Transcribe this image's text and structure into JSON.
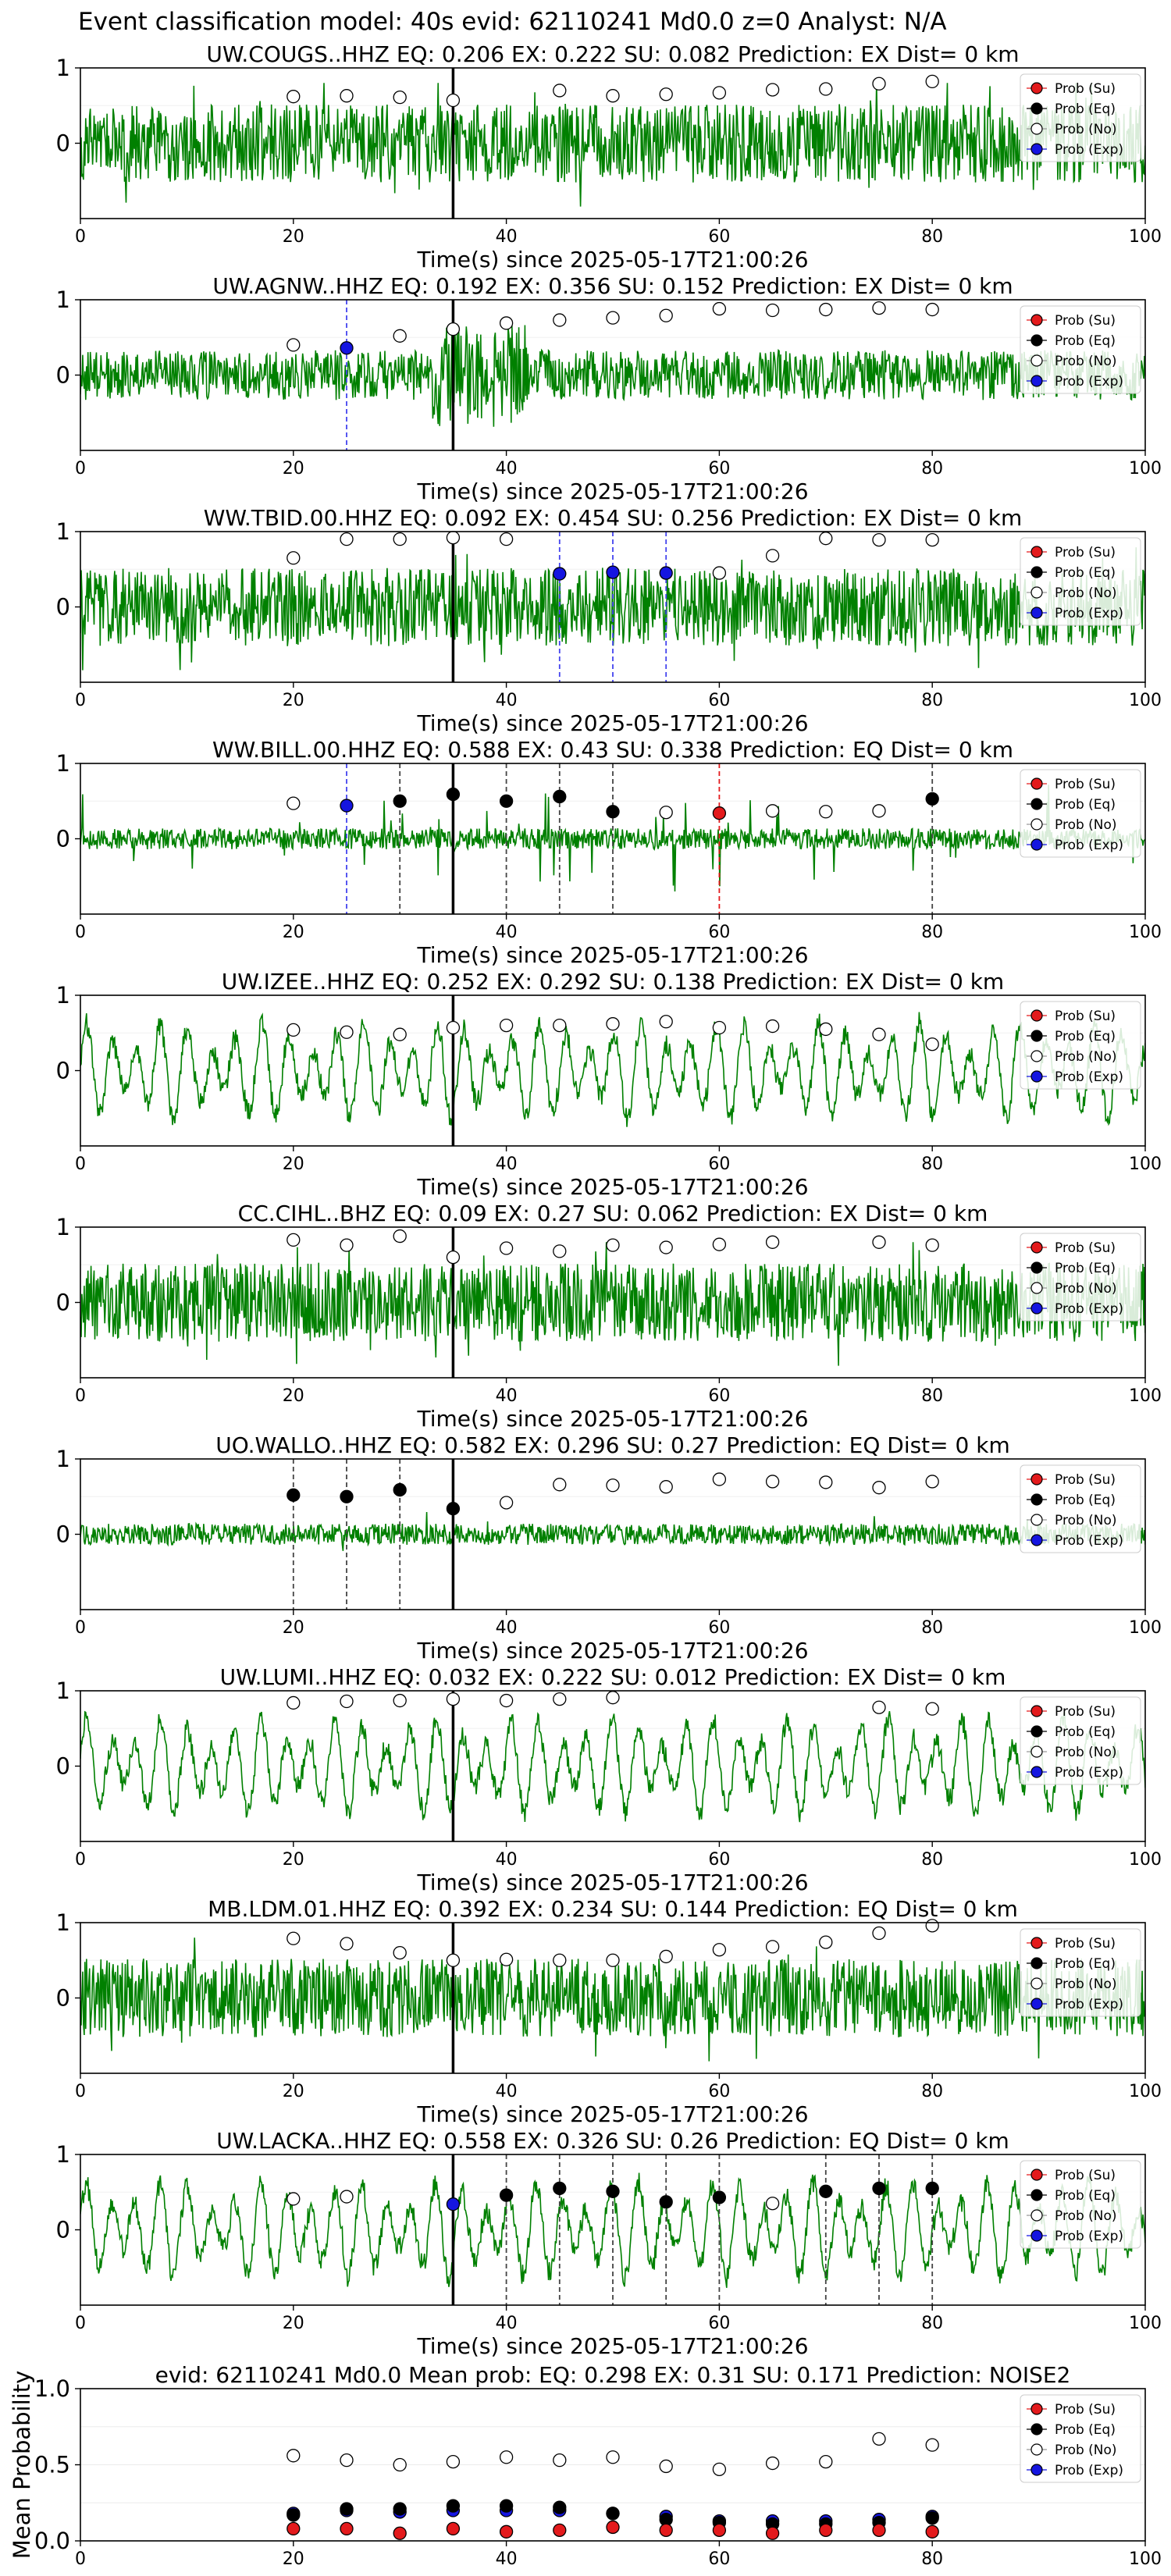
{
  "figure": {
    "suptitle": "Event classification model: 40s evid: 62110241 Md0.0 z=0 Analyst: N/A"
  },
  "legend": {
    "entries": [
      {
        "label": "Prob (Su)",
        "color": "#e31a1c"
      },
      {
        "label": "Prob (Eq)",
        "color": "#000000"
      },
      {
        "label": "Prob (No)",
        "color": "#ffffff"
      },
      {
        "label": "Prob (Exp)",
        "color": "#1515e0"
      }
    ]
  },
  "colors": {
    "waveform": "#008000",
    "su": "#e31a1c",
    "eq": "#000000",
    "no": "#ffffff",
    "exp": "#1515e0",
    "origin_line": "#000000"
  },
  "chart_data": [
    {
      "type": "line",
      "title": "UW.COUGS..HHZ   EQ: 0.206  EX: 0.222  SU: 0.082   Prediction: EX    Dist= 0 km",
      "xlabel": "Time(s) since 2025-05-17T21:00:26",
      "xlim": [
        0,
        100
      ],
      "ylim": [
        -1,
        1
      ],
      "xticks": [
        0,
        20,
        40,
        60,
        80,
        100
      ],
      "yticks": [
        0,
        1
      ],
      "origin_time": 35,
      "waveform_style": "noisy",
      "detections": [],
      "no_prob": {
        "x": [
          20,
          25,
          30,
          35,
          45,
          50,
          55,
          60,
          65,
          70,
          75,
          80
        ],
        "y": [
          0.62,
          0.63,
          0.61,
          0.57,
          0.7,
          0.63,
          0.65,
          0.67,
          0.71,
          0.72,
          0.79,
          0.82
        ]
      },
      "eq_prob": {
        "x": [],
        "y": []
      },
      "exp_prob": {
        "x": [],
        "y": []
      },
      "su_prob": {
        "x": [],
        "y": []
      }
    },
    {
      "type": "line",
      "title": "UW.AGNW..HHZ   EQ: 0.192  EX: 0.356  SU: 0.152   Prediction: EX    Dist= 0 km",
      "xlabel": "Time(s) since 2025-05-17T21:00:26",
      "xlim": [
        0,
        100
      ],
      "ylim": [
        -1,
        1
      ],
      "xticks": [
        0,
        20,
        40,
        60,
        80,
        100
      ],
      "yticks": [
        0,
        1
      ],
      "origin_time": 35,
      "waveform_style": "burst",
      "detections": [
        {
          "x": 25,
          "kind": "exp"
        }
      ],
      "no_prob": {
        "x": [
          20,
          30,
          35,
          40,
          45,
          50,
          55,
          60,
          65,
          70,
          75,
          80
        ],
        "y": [
          0.4,
          0.52,
          0.61,
          0.69,
          0.73,
          0.76,
          0.79,
          0.88,
          0.86,
          0.87,
          0.89,
          0.87
        ]
      },
      "eq_prob": {
        "x": [],
        "y": []
      },
      "exp_prob": {
        "x": [
          25
        ],
        "y": [
          0.36
        ]
      },
      "su_prob": {
        "x": [],
        "y": []
      }
    },
    {
      "type": "line",
      "title": "WW.TBID.00.HHZ   EQ: 0.092  EX: 0.454  SU: 0.256   Prediction: EX    Dist= 0 km",
      "xlabel": "Time(s) since 2025-05-17T21:00:26",
      "xlim": [
        0,
        100
      ],
      "ylim": [
        -1,
        1
      ],
      "xticks": [
        0,
        20,
        40,
        60,
        80,
        100
      ],
      "yticks": [
        0,
        1
      ],
      "origin_time": 35,
      "waveform_style": "noisy",
      "detections": [
        {
          "x": 45,
          "kind": "exp"
        },
        {
          "x": 50,
          "kind": "exp"
        },
        {
          "x": 55,
          "kind": "exp"
        }
      ],
      "no_prob": {
        "x": [
          20,
          25,
          30,
          35,
          40,
          60,
          65,
          70,
          75,
          80
        ],
        "y": [
          0.65,
          0.9,
          0.9,
          0.92,
          0.9,
          0.45,
          0.68,
          0.91,
          0.89,
          0.89
        ]
      },
      "eq_prob": {
        "x": [],
        "y": []
      },
      "exp_prob": {
        "x": [
          45,
          50,
          55
        ],
        "y": [
          0.44,
          0.46,
          0.45
        ]
      },
      "su_prob": {
        "x": [],
        "y": []
      }
    },
    {
      "type": "line",
      "title": "WW.BILL.00.HHZ   EQ: 0.588  EX: 0.43  SU: 0.338   Prediction: EQ    Dist= 0 km",
      "xlabel": "Time(s) since 2025-05-17T21:00:26",
      "xlim": [
        0,
        100
      ],
      "ylim": [
        -1,
        1
      ],
      "xticks": [
        0,
        20,
        40,
        60,
        80,
        100
      ],
      "yticks": [
        0,
        1
      ],
      "origin_time": 35,
      "waveform_style": "spiky",
      "detections": [
        {
          "x": 25,
          "kind": "exp"
        },
        {
          "x": 30,
          "kind": "eq"
        },
        {
          "x": 40,
          "kind": "eq"
        },
        {
          "x": 45,
          "kind": "eq"
        },
        {
          "x": 50,
          "kind": "eq"
        },
        {
          "x": 60,
          "kind": "su"
        },
        {
          "x": 80,
          "kind": "eq"
        }
      ],
      "no_prob": {
        "x": [
          20,
          55,
          65,
          70,
          75
        ],
        "y": [
          0.47,
          0.35,
          0.37,
          0.36,
          0.37
        ]
      },
      "eq_prob": {
        "x": [
          30,
          35,
          40,
          45,
          50,
          80
        ],
        "y": [
          0.5,
          0.59,
          0.5,
          0.56,
          0.36,
          0.53
        ]
      },
      "exp_prob": {
        "x": [
          25
        ],
        "y": [
          0.44
        ]
      },
      "su_prob": {
        "x": [
          60
        ],
        "y": [
          0.34
        ]
      }
    },
    {
      "type": "line",
      "title": "UW.IZEE..HHZ   EQ: 0.252  EX: 0.292  SU: 0.138   Prediction: EX    Dist= 0 km",
      "xlabel": "Time(s) since 2025-05-17T21:00:26",
      "xlim": [
        0,
        100
      ],
      "ylim": [
        -1,
        1
      ],
      "xticks": [
        0,
        20,
        40,
        60,
        80,
        100
      ],
      "yticks": [
        0,
        1
      ],
      "origin_time": 35,
      "waveform_style": "wavy",
      "detections": [],
      "no_prob": {
        "x": [
          20,
          25,
          30,
          35,
          40,
          45,
          50,
          55,
          60,
          65,
          70,
          75,
          80
        ],
        "y": [
          0.54,
          0.51,
          0.48,
          0.57,
          0.6,
          0.6,
          0.62,
          0.65,
          0.57,
          0.59,
          0.55,
          0.48,
          0.35
        ]
      },
      "eq_prob": {
        "x": [],
        "y": []
      },
      "exp_prob": {
        "x": [],
        "y": []
      },
      "su_prob": {
        "x": [],
        "y": []
      }
    },
    {
      "type": "line",
      "title": "CC.CIHL..BHZ   EQ: 0.09  EX: 0.27  SU: 0.062   Prediction: EX    Dist= 0 km",
      "xlabel": "Time(s) since 2025-05-17T21:00:26",
      "xlim": [
        0,
        100
      ],
      "ylim": [
        -1,
        1
      ],
      "xticks": [
        0,
        20,
        40,
        60,
        80,
        100
      ],
      "yticks": [
        0,
        1
      ],
      "origin_time": 35,
      "waveform_style": "noisy",
      "detections": [],
      "no_prob": {
        "x": [
          20,
          25,
          30,
          35,
          40,
          45,
          50,
          55,
          60,
          65,
          75,
          80
        ],
        "y": [
          0.83,
          0.76,
          0.88,
          0.6,
          0.72,
          0.68,
          0.76,
          0.73,
          0.77,
          0.8,
          0.8,
          0.76
        ]
      },
      "eq_prob": {
        "x": [],
        "y": []
      },
      "exp_prob": {
        "x": [],
        "y": []
      },
      "su_prob": {
        "x": [],
        "y": []
      }
    },
    {
      "type": "line",
      "title": "UO.WALLO..HHZ   EQ: 0.582  EX: 0.296  SU: 0.27   Prediction: EQ    Dist= 0 km",
      "xlabel": "Time(s) since 2025-05-17T21:00:26",
      "xlim": [
        0,
        100
      ],
      "ylim": [
        -1,
        1
      ],
      "xticks": [
        0,
        20,
        40,
        60,
        80,
        100
      ],
      "yticks": [
        0,
        1
      ],
      "origin_time": 35,
      "waveform_style": "quiet",
      "detections": [
        {
          "x": 20,
          "kind": "eq"
        },
        {
          "x": 25,
          "kind": "eq"
        },
        {
          "x": 30,
          "kind": "eq"
        }
      ],
      "no_prob": {
        "x": [
          40,
          45,
          50,
          55,
          60,
          65,
          70,
          75,
          80
        ],
        "y": [
          0.42,
          0.66,
          0.65,
          0.63,
          0.73,
          0.7,
          0.69,
          0.62,
          0.7
        ]
      },
      "eq_prob": {
        "x": [
          20,
          25,
          30,
          35
        ],
        "y": [
          0.52,
          0.5,
          0.59,
          0.34
        ]
      },
      "exp_prob": {
        "x": [],
        "y": []
      },
      "su_prob": {
        "x": [],
        "y": []
      }
    },
    {
      "type": "line",
      "title": "UW.LUMI..HHZ   EQ: 0.032  EX: 0.222  SU: 0.012   Prediction: EX    Dist= 0 km",
      "xlabel": "Time(s) since 2025-05-17T21:00:26",
      "xlim": [
        0,
        100
      ],
      "ylim": [
        -1,
        1
      ],
      "xticks": [
        0,
        20,
        40,
        60,
        80,
        100
      ],
      "yticks": [
        0,
        1
      ],
      "origin_time": 35,
      "waveform_style": "wavy",
      "detections": [],
      "no_prob": {
        "x": [
          20,
          25,
          30,
          35,
          40,
          45,
          50,
          75,
          80
        ],
        "y": [
          0.84,
          0.86,
          0.87,
          0.89,
          0.87,
          0.89,
          0.91,
          0.78,
          0.76
        ]
      },
      "eq_prob": {
        "x": [],
        "y": []
      },
      "exp_prob": {
        "x": [],
        "y": []
      },
      "su_prob": {
        "x": [],
        "y": []
      }
    },
    {
      "type": "line",
      "title": "MB.LDM.01.HHZ   EQ: 0.392  EX: 0.234  SU: 0.144   Prediction: EQ    Dist= 0 km",
      "xlabel": "Time(s) since 2025-05-17T21:00:26",
      "xlim": [
        0,
        100
      ],
      "ylim": [
        -1,
        1
      ],
      "xticks": [
        0,
        20,
        40,
        60,
        80,
        100
      ],
      "yticks": [
        0,
        1
      ],
      "origin_time": 35,
      "waveform_style": "noisy",
      "detections": [],
      "no_prob": {
        "x": [
          20,
          25,
          30,
          35,
          40,
          45,
          50,
          55,
          60,
          65,
          70,
          75,
          80
        ],
        "y": [
          0.79,
          0.72,
          0.6,
          0.5,
          0.51,
          0.5,
          0.5,
          0.55,
          0.64,
          0.68,
          0.74,
          0.86,
          0.96
        ]
      },
      "eq_prob": {
        "x": [],
        "y": []
      },
      "exp_prob": {
        "x": [],
        "y": []
      },
      "su_prob": {
        "x": [],
        "y": []
      }
    },
    {
      "type": "line",
      "title": "UW.LACKA..HHZ   EQ: 0.558  EX: 0.326  SU: 0.26   Prediction: EQ    Dist= 0 km",
      "xlabel": "Time(s) since 2025-05-17T21:00:26",
      "xlim": [
        0,
        100
      ],
      "ylim": [
        -1,
        1
      ],
      "xticks": [
        0,
        20,
        40,
        60,
        80,
        100
      ],
      "yticks": [
        0,
        1
      ],
      "origin_time": 35,
      "waveform_style": "wavy",
      "detections": [
        {
          "x": 40,
          "kind": "eq"
        },
        {
          "x": 45,
          "kind": "eq"
        },
        {
          "x": 50,
          "kind": "eq"
        },
        {
          "x": 55,
          "kind": "eq"
        },
        {
          "x": 60,
          "kind": "eq"
        },
        {
          "x": 70,
          "kind": "eq"
        },
        {
          "x": 75,
          "kind": "eq"
        },
        {
          "x": 80,
          "kind": "eq"
        }
      ],
      "no_prob": {
        "x": [
          20,
          25,
          65
        ],
        "y": [
          0.41,
          0.44,
          0.35
        ]
      },
      "eq_prob": {
        "x": [
          40,
          45,
          50,
          55,
          60,
          70,
          75,
          80
        ],
        "y": [
          0.46,
          0.55,
          0.51,
          0.37,
          0.43,
          0.51,
          0.55,
          0.55
        ]
      },
      "exp_prob": {
        "x": [
          35
        ],
        "y": [
          0.34
        ]
      },
      "su_prob": {
        "x": [],
        "y": []
      }
    },
    {
      "type": "scatter",
      "title": "evid: 62110241  Md0.0   Mean prob:    EQ: 0.298  EX: 0.31  SU: 0.171   Prediction: NOISE2",
      "ylabel": "Mean Probability",
      "xlim": [
        0,
        100
      ],
      "ylim": [
        0,
        1
      ],
      "xticks": [
        0,
        20,
        40,
        60,
        80,
        100
      ],
      "yticks": [
        0.0,
        0.5,
        1.0
      ],
      "ytick_labels": [
        "0.0",
        "0.5",
        "1.0"
      ],
      "x": [
        20,
        25,
        30,
        35,
        40,
        45,
        50,
        55,
        60,
        65,
        70,
        75,
        80
      ],
      "series": [
        {
          "name": "Prob (No)",
          "values": [
            0.56,
            0.53,
            0.5,
            0.52,
            0.55,
            0.53,
            0.55,
            0.49,
            0.47,
            0.51,
            0.52,
            0.67,
            0.63
          ]
        },
        {
          "name": "Prob (Exp)",
          "values": [
            0.18,
            0.2,
            0.19,
            0.2,
            0.2,
            0.2,
            0.18,
            0.16,
            0.13,
            0.13,
            0.13,
            0.14,
            0.16
          ]
        },
        {
          "name": "Prob (Eq)",
          "values": [
            0.17,
            0.21,
            0.21,
            0.23,
            0.23,
            0.22,
            0.18,
            0.14,
            0.12,
            0.11,
            0.11,
            0.12,
            0.15
          ]
        },
        {
          "name": "Prob (Su)",
          "values": [
            0.08,
            0.08,
            0.05,
            0.08,
            0.06,
            0.07,
            0.09,
            0.07,
            0.07,
            0.05,
            0.07,
            0.07,
            0.06
          ]
        }
      ]
    }
  ]
}
